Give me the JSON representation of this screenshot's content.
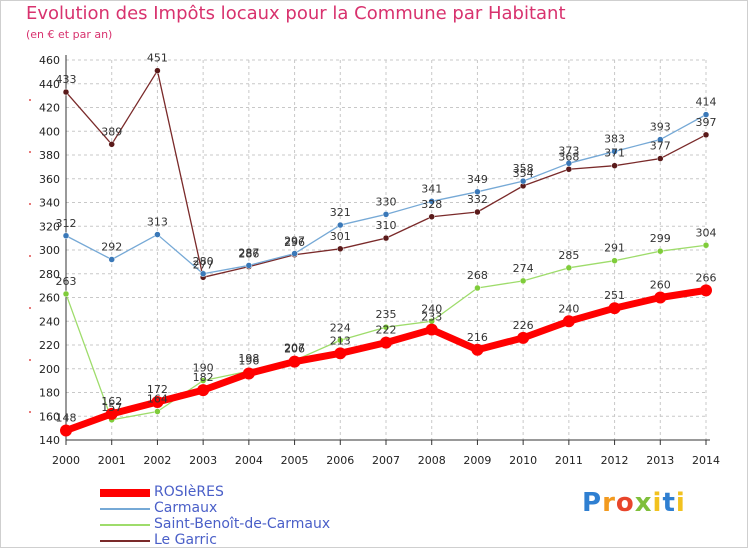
{
  "title": "Evolution des Impôts locaux pour la Commune par Habitant",
  "subtitle": "(en € et par an)",
  "logo": {
    "letters": [
      "P",
      "r",
      "o",
      "x",
      "i",
      "t",
      "i"
    ]
  },
  "colors": {
    "rosieres": "#ff0000",
    "carmaux": "#76a9d6",
    "saint_benoit": "#9edc6b",
    "le_garric": "#7a2a2a",
    "grid": "#c8c8c8",
    "axis_dots": "#e05050"
  },
  "chart_data": {
    "type": "line",
    "title": "Evolution des Impôts locaux pour la Commune par Habitant",
    "subtitle": "(en € et par an)",
    "xlabel": "",
    "ylabel": "",
    "ylim": [
      140,
      460
    ],
    "yticks": [
      140,
      160,
      180,
      200,
      220,
      240,
      260,
      280,
      300,
      320,
      340,
      360,
      380,
      400,
      420,
      440,
      460
    ],
    "categories": [
      "2000",
      "2001",
      "2002",
      "2003",
      "2004",
      "2005",
      "2006",
      "2007",
      "2008",
      "2009",
      "2010",
      "2011",
      "2012",
      "2013",
      "2014"
    ],
    "series": [
      {
        "name": "Le Garric",
        "color": "#7a2a2a",
        "dot": "#5a1a1a",
        "values": [
          433,
          389,
          451,
          277,
          286,
          296,
          301,
          310,
          328,
          332,
          354,
          368,
          371,
          377,
          397
        ]
      },
      {
        "name": "Carmaux",
        "color": "#76a9d6",
        "dot": "#3a78b8",
        "values": [
          312,
          292,
          313,
          280,
          287,
          297,
          321,
          330,
          341,
          349,
          358,
          373,
          383,
          393,
          414
        ]
      },
      {
        "name": "Saint-Benoît-de-Carmaux",
        "color": "#9edc6b",
        "dot": "#7fcc3a",
        "values": [
          263,
          157,
          164,
          190,
          198,
          207,
          224,
          235,
          240,
          268,
          274,
          285,
          291,
          299,
          304
        ]
      },
      {
        "name": "ROSIèRES",
        "color": "#ff0000",
        "dot": "#ff0000",
        "values": [
          148,
          162,
          172,
          182,
          196,
          206,
          213,
          222,
          233,
          216,
          226,
          240,
          251,
          260,
          266
        ]
      }
    ],
    "legend": [
      "ROSIèRES",
      "Carmaux",
      "Saint-Benoît-de-Carmaux",
      "Le Garric"
    ],
    "legend_position": "bottom-left"
  }
}
